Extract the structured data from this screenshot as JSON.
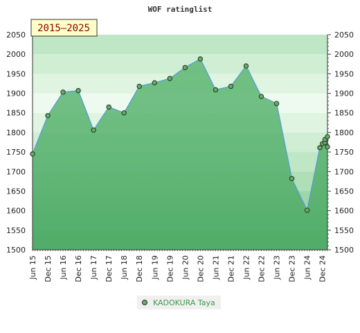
{
  "chart_data": {
    "type": "area",
    "title": "WOF ratinglist",
    "range_label": "2015–2025",
    "x_tick_labels": [
      "Jun 15",
      "Dec 15",
      "Jun 16",
      "Dec 16",
      "Jun 17",
      "Dec 17",
      "Jun 18",
      "Dec 18",
      "Jun 19",
      "Dec 19",
      "Jun 20",
      "Dec 20",
      "Jun 21",
      "Dec 21",
      "Jun 22",
      "Dec 22",
      "Jun 23",
      "Dec 23",
      "Jun 24",
      "Dec 24"
    ],
    "y_ticks": [
      1500,
      1550,
      1600,
      1650,
      1700,
      1750,
      1800,
      1850,
      1900,
      1950,
      2000,
      2050
    ],
    "ylim": [
      1500,
      2050
    ],
    "xlim": [
      "2015-06",
      "2025-02"
    ],
    "series": [
      {
        "name": "KADOKURA Taya",
        "color": "#6aa86a",
        "x": [
          "2015-06",
          "2015-12",
          "2016-06",
          "2016-12",
          "2017-06",
          "2017-12",
          "2018-06",
          "2018-12",
          "2019-06",
          "2019-12",
          "2020-06",
          "2020-12",
          "2021-06",
          "2021-12",
          "2022-06",
          "2022-12",
          "2023-06",
          "2023-12",
          "2024-06",
          "2024-11",
          "2024-12",
          "2025-01",
          "2025-01",
          "2025-02",
          "2025-02"
        ],
        "values": [
          1745,
          1843,
          1903,
          1907,
          1806,
          1865,
          1850,
          1918,
          1927,
          1938,
          1966,
          1988,
          1909,
          1918,
          1970,
          1892,
          1874,
          1682,
          1601,
          1761,
          1771,
          1774,
          1782,
          1789,
          1763
        ]
      }
    ],
    "grid": true,
    "legend_position": "bottom-center"
  }
}
